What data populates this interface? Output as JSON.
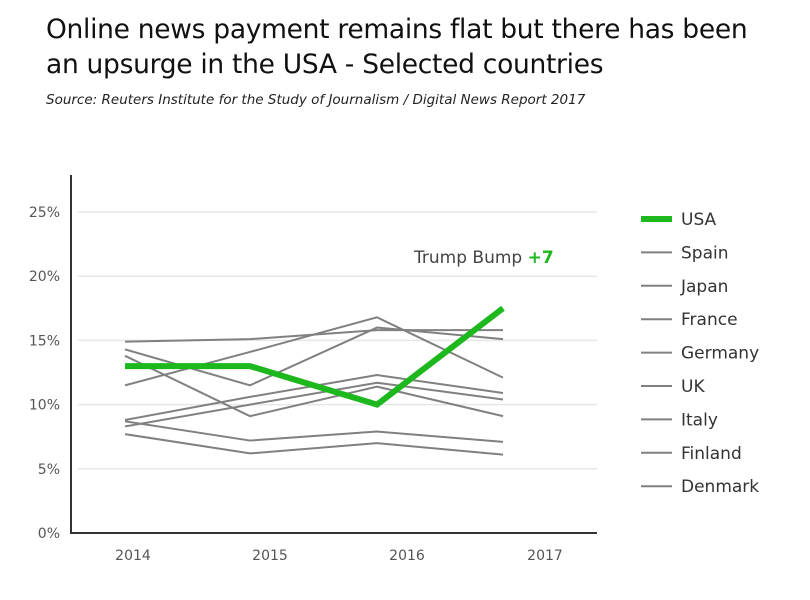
{
  "title": "Online news payment remains flat but there has been an upsurge in the USA - Selected countries",
  "source": "Source: Reuters Institute for the Study of Journalism / Digital News Report 2017",
  "chart_data": {
    "type": "line",
    "categories": [
      "2014",
      "2015",
      "2016",
      "2017"
    ],
    "ylim": [
      0,
      25
    ],
    "y_ticks": [
      "0%",
      "5%",
      "10%",
      "15%",
      "20%",
      "25%"
    ],
    "grid": "horizontal",
    "legend_position": "right",
    "annotation": {
      "text": "Trump Bump",
      "value_text": "+7"
    },
    "highlight_color": "#1db81d",
    "other_color": "#808080",
    "series": [
      {
        "name": "USA",
        "values": [
          13,
          13,
          10,
          17.5
        ],
        "highlight": true
      },
      {
        "name": "Spain",
        "values": [
          14.9,
          15.1,
          15.8,
          15.8
        ]
      },
      {
        "name": "Japan",
        "values": [
          11.5,
          14.1,
          16.8,
          12.1
        ]
      },
      {
        "name": "France",
        "values": [
          14.3,
          11.5,
          16,
          15.1
        ]
      },
      {
        "name": "Germany",
        "values": [
          13.8,
          9.1,
          11.4,
          9.1
        ]
      },
      {
        "name": "UK",
        "values": [
          8.8,
          10.6,
          12.3,
          10.9
        ]
      },
      {
        "name": "Italy",
        "values": [
          8.3,
          10,
          11.7,
          10.4
        ]
      },
      {
        "name": "Finland",
        "values": [
          8.7,
          7.2,
          7.9,
          7.1
        ]
      },
      {
        "name": "Denmark",
        "values": [
          7.7,
          6.2,
          7,
          6.1
        ]
      }
    ]
  }
}
